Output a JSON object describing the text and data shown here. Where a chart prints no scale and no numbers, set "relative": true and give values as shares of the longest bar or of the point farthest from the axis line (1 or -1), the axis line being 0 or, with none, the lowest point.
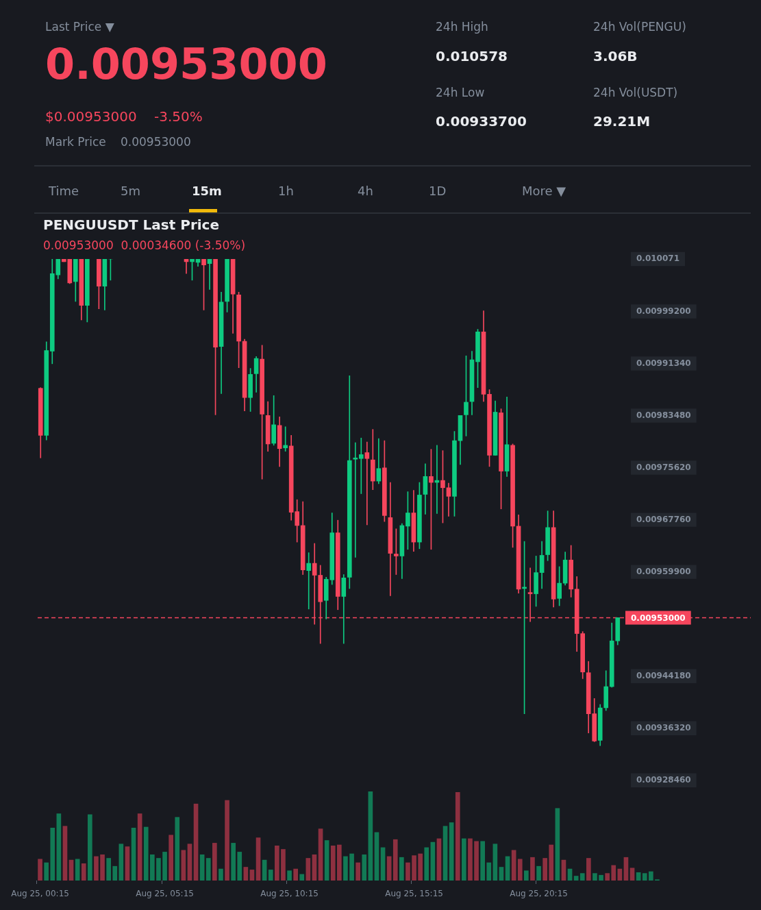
{
  "chart_data": [
    {
      "type": "other",
      "annotations": [
        "Last Price ▼",
        "0.00953000",
        "$0.00953000",
        "-3.50%",
        "Mark Price",
        "0.00953000",
        "24h High",
        "0.010578",
        "24h Low",
        "0.00933700",
        "24h Vol(PENGU)",
        "3.06B",
        "24h Vol(USDT)",
        "29.21M",
        "Time",
        "5m",
        "15m",
        "1h",
        "4h",
        "1D",
        "More ▼"
      ]
    },
    {
      "type": "candlestick",
      "title": "PENGUUSDT Last Price",
      "subtitle": "0.00953000  0.00034600 (-3.50%)",
      "categories": [
        null,
        null,
        null,
        null,
        null,
        null,
        null,
        null,
        null,
        null,
        null,
        null,
        null,
        null,
        null,
        null,
        null,
        null,
        null,
        null,
        null,
        null,
        null,
        null,
        null,
        null,
        null,
        null,
        null,
        null,
        null,
        null,
        null,
        null,
        null,
        null,
        null,
        null,
        null,
        null,
        null,
        null,
        null,
        null,
        null,
        null,
        null,
        null,
        null,
        null,
        null,
        null,
        null,
        null,
        null,
        null,
        null,
        null,
        null,
        null,
        null,
        null,
        null,
        null,
        null,
        null,
        null,
        null,
        null,
        null,
        null,
        null,
        null,
        null,
        null,
        null,
        null,
        null,
        null,
        null,
        null,
        null,
        null,
        null,
        null,
        null,
        null,
        null,
        null,
        null,
        null,
        null,
        null,
        null,
        null,
        null,
        null,
        null,
        null,
        null
      ],
      "ohlc": [
        [
          0.009876,
          0.009877,
          0.009771,
          0.009805
        ],
        [
          0.009805,
          0.009946,
          0.009798,
          0.009933
        ],
        [
          0.009932,
          0.010071,
          0.009913,
          0.010049
        ],
        [
          0.010047,
          0.010071,
          0.010041,
          0.010071
        ],
        [
          0.010071,
          0.010071,
          0.010067,
          0.010067
        ],
        [
          0.010071,
          0.010071,
          0.010034,
          0.010035
        ],
        [
          0.010037,
          0.010071,
          0.010007,
          0.010071
        ],
        [
          0.010071,
          0.010071,
          0.009979,
          0.010001
        ],
        [
          0.010001,
          0.010071,
          0.009976,
          0.010071
        ],
        null,
        [
          0.010071,
          0.010071,
          0.009996,
          0.01003
        ],
        [
          0.01003,
          0.010071,
          0.009994,
          0.010071
        ],
        [
          0.010071,
          0.010071,
          0.010039,
          0.010071
        ],
        null,
        null,
        null,
        null,
        null,
        null,
        null,
        null,
        null,
        null,
        null,
        null,
        [
          0.010071,
          0.010071,
          0.010049,
          0.010067
        ],
        [
          0.010067,
          0.010071,
          0.010039,
          0.010071
        ],
        [
          0.010066,
          0.010071,
          0.01006,
          0.010071
        ],
        [
          0.010071,
          0.010071,
          0.009994,
          0.010062
        ],
        [
          0.010064,
          0.010071,
          0.010025,
          0.010071
        ],
        [
          0.010071,
          0.010071,
          0.009836,
          0.009938
        ],
        [
          0.009939,
          0.010021,
          0.009868,
          0.010006
        ],
        [
          0.010007,
          0.010071,
          0.009991,
          0.010071
        ],
        [
          0.010071,
          0.010071,
          0.009959,
          0.010018
        ],
        [
          0.010017,
          0.010021,
          0.009907,
          0.009947
        ],
        [
          0.009947,
          0.00995,
          0.009842,
          0.009862
        ],
        [
          0.009862,
          0.009906,
          0.009841,
          0.009897
        ],
        [
          0.009898,
          0.009924,
          0.00987,
          0.009921
        ],
        [
          0.00992,
          0.009941,
          0.009739,
          0.009837
        ],
        [
          0.009835,
          0.009856,
          0.009781,
          0.009792
        ],
        [
          0.009793,
          0.009865,
          0.00979,
          0.009821
        ],
        [
          0.00982,
          0.009833,
          0.009758,
          0.009785
        ],
        [
          0.009786,
          0.009818,
          0.009781,
          0.00979
        ],
        [
          0.009789,
          0.009805,
          0.009677,
          0.009689
        ],
        [
          0.00969,
          0.009708,
          0.009644,
          0.009669
        ],
        [
          0.009669,
          0.009705,
          0.009595,
          0.009602
        ],
        [
          0.009601,
          0.009628,
          0.009543,
          0.009612
        ],
        [
          0.009612,
          0.009642,
          0.00952,
          0.009594
        ],
        [
          0.009594,
          0.009609,
          0.009491,
          0.009554
        ],
        [
          0.009556,
          0.009591,
          0.009528,
          0.009588
        ],
        [
          0.009587,
          0.009688,
          0.00958,
          0.009658
        ],
        [
          0.009658,
          0.009677,
          0.009542,
          0.009562
        ],
        [
          0.009562,
          0.009595,
          0.009491,
          0.00959
        ],
        [
          0.009591,
          0.009895,
          0.009574,
          0.009767
        ],
        [
          0.009769,
          0.009794,
          0.009621,
          0.009771
        ],
        [
          0.00977,
          0.009801,
          0.009717,
          0.009776
        ],
        [
          0.009779,
          0.009795,
          0.00967,
          0.00977
        ],
        [
          0.009768,
          0.009814,
          0.009723,
          0.009736
        ],
        [
          0.009736,
          0.0098,
          0.009732,
          0.009755
        ],
        [
          0.009756,
          0.009797,
          0.009675,
          0.009684
        ],
        [
          0.009681,
          0.009734,
          0.009563,
          0.009627
        ],
        [
          0.009626,
          0.009664,
          0.009595,
          0.009623
        ],
        [
          0.009623,
          0.009672,
          0.009589,
          0.009669
        ],
        [
          0.009668,
          0.00972,
          0.009633,
          0.009688
        ],
        [
          0.009688,
          0.009722,
          0.00963,
          0.009644
        ],
        [
          0.009644,
          0.009734,
          0.009634,
          0.009715
        ],
        [
          0.009716,
          0.009762,
          0.009686,
          0.009743
        ],
        [
          0.009743,
          0.009784,
          0.009633,
          0.009734
        ],
        [
          0.009734,
          0.00979,
          0.009687,
          0.009737
        ],
        [
          0.009737,
          0.009782,
          0.009673,
          0.009726
        ],
        [
          0.009726,
          0.009733,
          0.009683,
          0.009713
        ],
        [
          0.009713,
          0.009811,
          0.009683,
          0.009797
        ],
        [
          0.009797,
          0.009835,
          0.009761,
          0.009835
        ],
        [
          0.009836,
          0.009925,
          0.009804,
          0.009855
        ],
        [
          0.009856,
          0.009932,
          0.009836,
          0.009919
        ],
        [
          0.009916,
          0.009965,
          0.009877,
          0.009961
        ],
        [
          0.009961,
          0.009993,
          0.009856,
          0.009867
        ],
        [
          0.009867,
          0.009874,
          0.009758,
          0.009775
        ],
        [
          0.009775,
          0.009857,
          0.009775,
          0.00984
        ],
        [
          0.009839,
          0.009845,
          0.009694,
          0.009751
        ],
        [
          0.009751,
          0.009863,
          0.009743,
          0.009791
        ],
        [
          0.00979,
          0.009792,
          0.009636,
          0.009668
        ],
        [
          0.009668,
          0.009685,
          0.009567,
          0.009573
        ],
        [
          0.009574,
          0.009645,
          0.009385,
          0.009576
        ],
        [
          0.009568,
          0.009605,
          0.009524,
          0.009566
        ],
        [
          0.009566,
          0.009623,
          0.009547,
          0.009598
        ],
        [
          0.009598,
          0.009645,
          0.009574,
          0.009624
        ],
        [
          0.009625,
          0.009691,
          0.009616,
          0.009666
        ],
        [
          0.009666,
          0.009691,
          0.009546,
          0.009558
        ],
        [
          0.009559,
          0.009607,
          0.009548,
          0.009582
        ],
        [
          0.009582,
          0.009629,
          0.009579,
          0.009617
        ],
        [
          0.009617,
          0.009639,
          0.009561,
          0.009573
        ],
        [
          0.009573,
          0.009592,
          0.009479,
          0.009506
        ],
        [
          0.009506,
          0.009509,
          0.009438,
          0.009448
        ],
        [
          0.009447,
          0.009464,
          0.009356,
          0.009385
        ],
        [
          0.009385,
          0.009408,
          0.009343,
          0.009344
        ],
        [
          0.009345,
          0.009399,
          0.009337,
          0.009394
        ],
        [
          0.009394,
          0.00945,
          0.00939,
          0.009426
        ],
        [
          0.009426,
          0.009522,
          0.009425,
          0.009495
        ],
        [
          0.009495,
          0.00953,
          0.009489,
          0.00953
        ]
      ],
      "colors": [
        "#f6465d",
        "#0ecb81",
        "#0ecb81",
        "#0ecb81",
        "#f6465d",
        "#f6465d",
        "#0ecb81",
        "#f6465d",
        "#0ecb81",
        null,
        "#f6465d",
        "#0ecb81",
        "#0ecb81",
        null,
        null,
        null,
        null,
        null,
        null,
        null,
        null,
        null,
        null,
        null,
        null,
        "#f6465d",
        "#0ecb81",
        "#0ecb81",
        "#f6465d",
        "#0ecb81",
        "#f6465d",
        "#0ecb81",
        "#0ecb81",
        "#f6465d",
        "#f6465d",
        "#f6465d",
        "#0ecb81",
        "#0ecb81",
        "#f6465d",
        "#f6465d",
        "#0ecb81",
        "#f6465d",
        "#0ecb81",
        "#f6465d",
        "#f6465d",
        "#f6465d",
        "#0ecb81",
        "#f6465d",
        "#f6465d",
        "#0ecb81",
        "#0ecb81",
        "#f6465d",
        "#0ecb81",
        "#0ecb81",
        "#0ecb81",
        "#0ecb81",
        "#f6465d",
        "#f6465d",
        "#0ecb81",
        "#f6465d",
        "#f6465d",
        "#f6465d",
        "#0ecb81",
        "#0ecb81",
        "#f6465d",
        "#0ecb81",
        "#0ecb81",
        "#f6465d",
        "#0ecb81",
        "#f6465d",
        "#f6465d",
        "#0ecb81",
        "#0ecb81",
        "#0ecb81",
        "#0ecb81",
        "#0ecb81",
        "#f6465d",
        "#f6465d",
        "#0ecb81",
        "#f6465d",
        "#0ecb81",
        "#f6465d",
        "#f6465d",
        "#0ecb81",
        "#f6465d",
        "#0ecb81",
        "#0ecb81",
        "#0ecb81",
        "#f6465d",
        "#0ecb81",
        "#0ecb81",
        "#f6465d",
        "#f6465d",
        "#f6465d",
        "#f6465d",
        "#f6465d",
        "#0ecb81",
        "#0ecb81",
        "#0ecb81",
        "#0ecb81"
      ],
      "ylim": [
        0.0092846,
        0.010071
      ],
      "yticks": [
        {
          "value": 0.0092846,
          "label": "0.00928460"
        },
        {
          "value": 0.0093632,
          "label": "0.00936320"
        },
        {
          "value": 0.0094418,
          "label": "0.00944180"
        },
        {
          "value": 0.009599,
          "label": "0.00959900"
        },
        {
          "value": 0.0096776,
          "label": "0.00967760"
        },
        {
          "value": 0.0097562,
          "label": "0.00975620"
        },
        {
          "value": 0.0098348,
          "label": "0.00983480"
        },
        {
          "value": 0.0099134,
          "label": "0.00991340"
        },
        {
          "value": 0.009992,
          "label": "0.00999200"
        },
        0.010071
      ],
      "ref_lines": [
        {
          "axis": "y",
          "value": 0.00953,
          "label": "0.00953000",
          "color": "#f6465d",
          "line_style": "dashed"
        }
      ],
      "tick_labels": "y"
    },
    {
      "type": "bar",
      "relative": true,
      "categories": [
        "Aug 25, 00:15",
        null,
        null,
        null,
        null,
        null,
        null,
        null,
        null,
        null,
        null,
        null,
        null,
        null,
        null,
        null,
        null,
        null,
        null,
        null,
        "Aug 25, 05:15",
        null,
        null,
        null,
        null,
        null,
        null,
        null,
        null,
        null,
        null,
        null,
        null,
        null,
        null,
        null,
        null,
        null,
        null,
        null,
        "Aug 25, 10:15",
        null,
        null,
        null,
        null,
        null,
        null,
        null,
        null,
        null,
        null,
        null,
        null,
        null,
        null,
        null,
        null,
        null,
        null,
        null,
        "Aug 25, 15:15",
        null,
        null,
        null,
        null,
        null,
        null,
        null,
        null,
        null,
        null,
        null,
        null,
        null,
        null,
        null,
        null,
        null,
        null,
        null,
        "Aug 25, 20:15",
        null,
        null,
        null,
        null,
        null,
        null,
        null,
        null,
        null,
        null,
        null,
        null,
        null,
        null,
        null,
        null,
        null,
        null,
        null
      ],
      "values": [
        0.24,
        0.2,
        0.59,
        0.75,
        0.61,
        0.23,
        0.24,
        0.19,
        0.74,
        0.27,
        0.29,
        0.25,
        0.16,
        0.41,
        0.38,
        0.59,
        0.75,
        0.6,
        0.29,
        0.25,
        0.32,
        0.51,
        0.71,
        0.34,
        0.41,
        0.86,
        0.29,
        0.25,
        0.42,
        0.13,
        0.9,
        0.42,
        0.32,
        0.15,
        0.12,
        0.48,
        0.23,
        0.12,
        0.39,
        0.35,
        0.11,
        0.13,
        0.07,
        0.25,
        0.29,
        0.58,
        0.45,
        0.39,
        0.4,
        0.27,
        0.3,
        0.2,
        0.29,
        1,
        0.54,
        0.37,
        0.27,
        0.46,
        0.26,
        0.2,
        0.28,
        0.3,
        0.37,
        0.43,
        0.47,
        0.61,
        0.65,
        0.99,
        0.47,
        0.47,
        0.44,
        0.44,
        0.2,
        0.41,
        0.15,
        0.27,
        0.34,
        0.24,
        0.11,
        0.26,
        0.16,
        0.25,
        0.4,
        0.81,
        0.23,
        0.13,
        0.05,
        0.08,
        0.25,
        0.08,
        0.06,
        0.08,
        0.17,
        0.13,
        0.26,
        0.14,
        0.09,
        0.08,
        0.1,
        0.01
      ],
      "colors": [
        "#8e3040",
        "#127a55",
        "#127a55",
        "#127a55",
        "#8e3040",
        "#8e3040",
        "#127a55",
        "#8e3040",
        "#127a55",
        "#8e3040",
        "#8e3040",
        "#127a55",
        "#127a55",
        "#127a55",
        "#8e3040",
        "#127a55",
        "#8e3040",
        "#127a55",
        "#127a55",
        "#127a55",
        "#127a55",
        "#8e3040",
        "#127a55",
        "#8e3040",
        "#8e3040",
        "#8e3040",
        "#127a55",
        "#127a55",
        "#8e3040",
        "#127a55",
        "#8e3040",
        "#127a55",
        "#127a55",
        "#8e3040",
        "#8e3040",
        "#8e3040",
        "#127a55",
        "#127a55",
        "#8e3040",
        "#8e3040",
        "#127a55",
        "#8e3040",
        "#127a55",
        "#8e3040",
        "#8e3040",
        "#8e3040",
        "#127a55",
        "#8e3040",
        "#8e3040",
        "#127a55",
        "#127a55",
        "#8e3040",
        "#127a55",
        "#127a55",
        "#127a55",
        "#127a55",
        "#8e3040",
        "#8e3040",
        "#127a55",
        "#8e3040",
        "#8e3040",
        "#8e3040",
        "#127a55",
        "#127a55",
        "#8e3040",
        "#127a55",
        "#127a55",
        "#8e3040",
        "#127a55",
        "#8e3040",
        "#8e3040",
        "#127a55",
        "#127a55",
        "#127a55",
        "#127a55",
        "#127a55",
        "#8e3040",
        "#8e3040",
        "#127a55",
        "#8e3040",
        "#127a55",
        "#8e3040",
        "#8e3040",
        "#127a55",
        "#8e3040",
        "#127a55",
        "#127a55",
        "#127a55",
        "#8e3040",
        "#127a55",
        "#127a55",
        "#8e3040",
        "#8e3040",
        "#8e3040",
        "#8e3040",
        "#8e3040",
        "#127a55",
        "#127a55",
        "#127a55",
        "#127a55"
      ],
      "tick_labels": "x"
    }
  ]
}
